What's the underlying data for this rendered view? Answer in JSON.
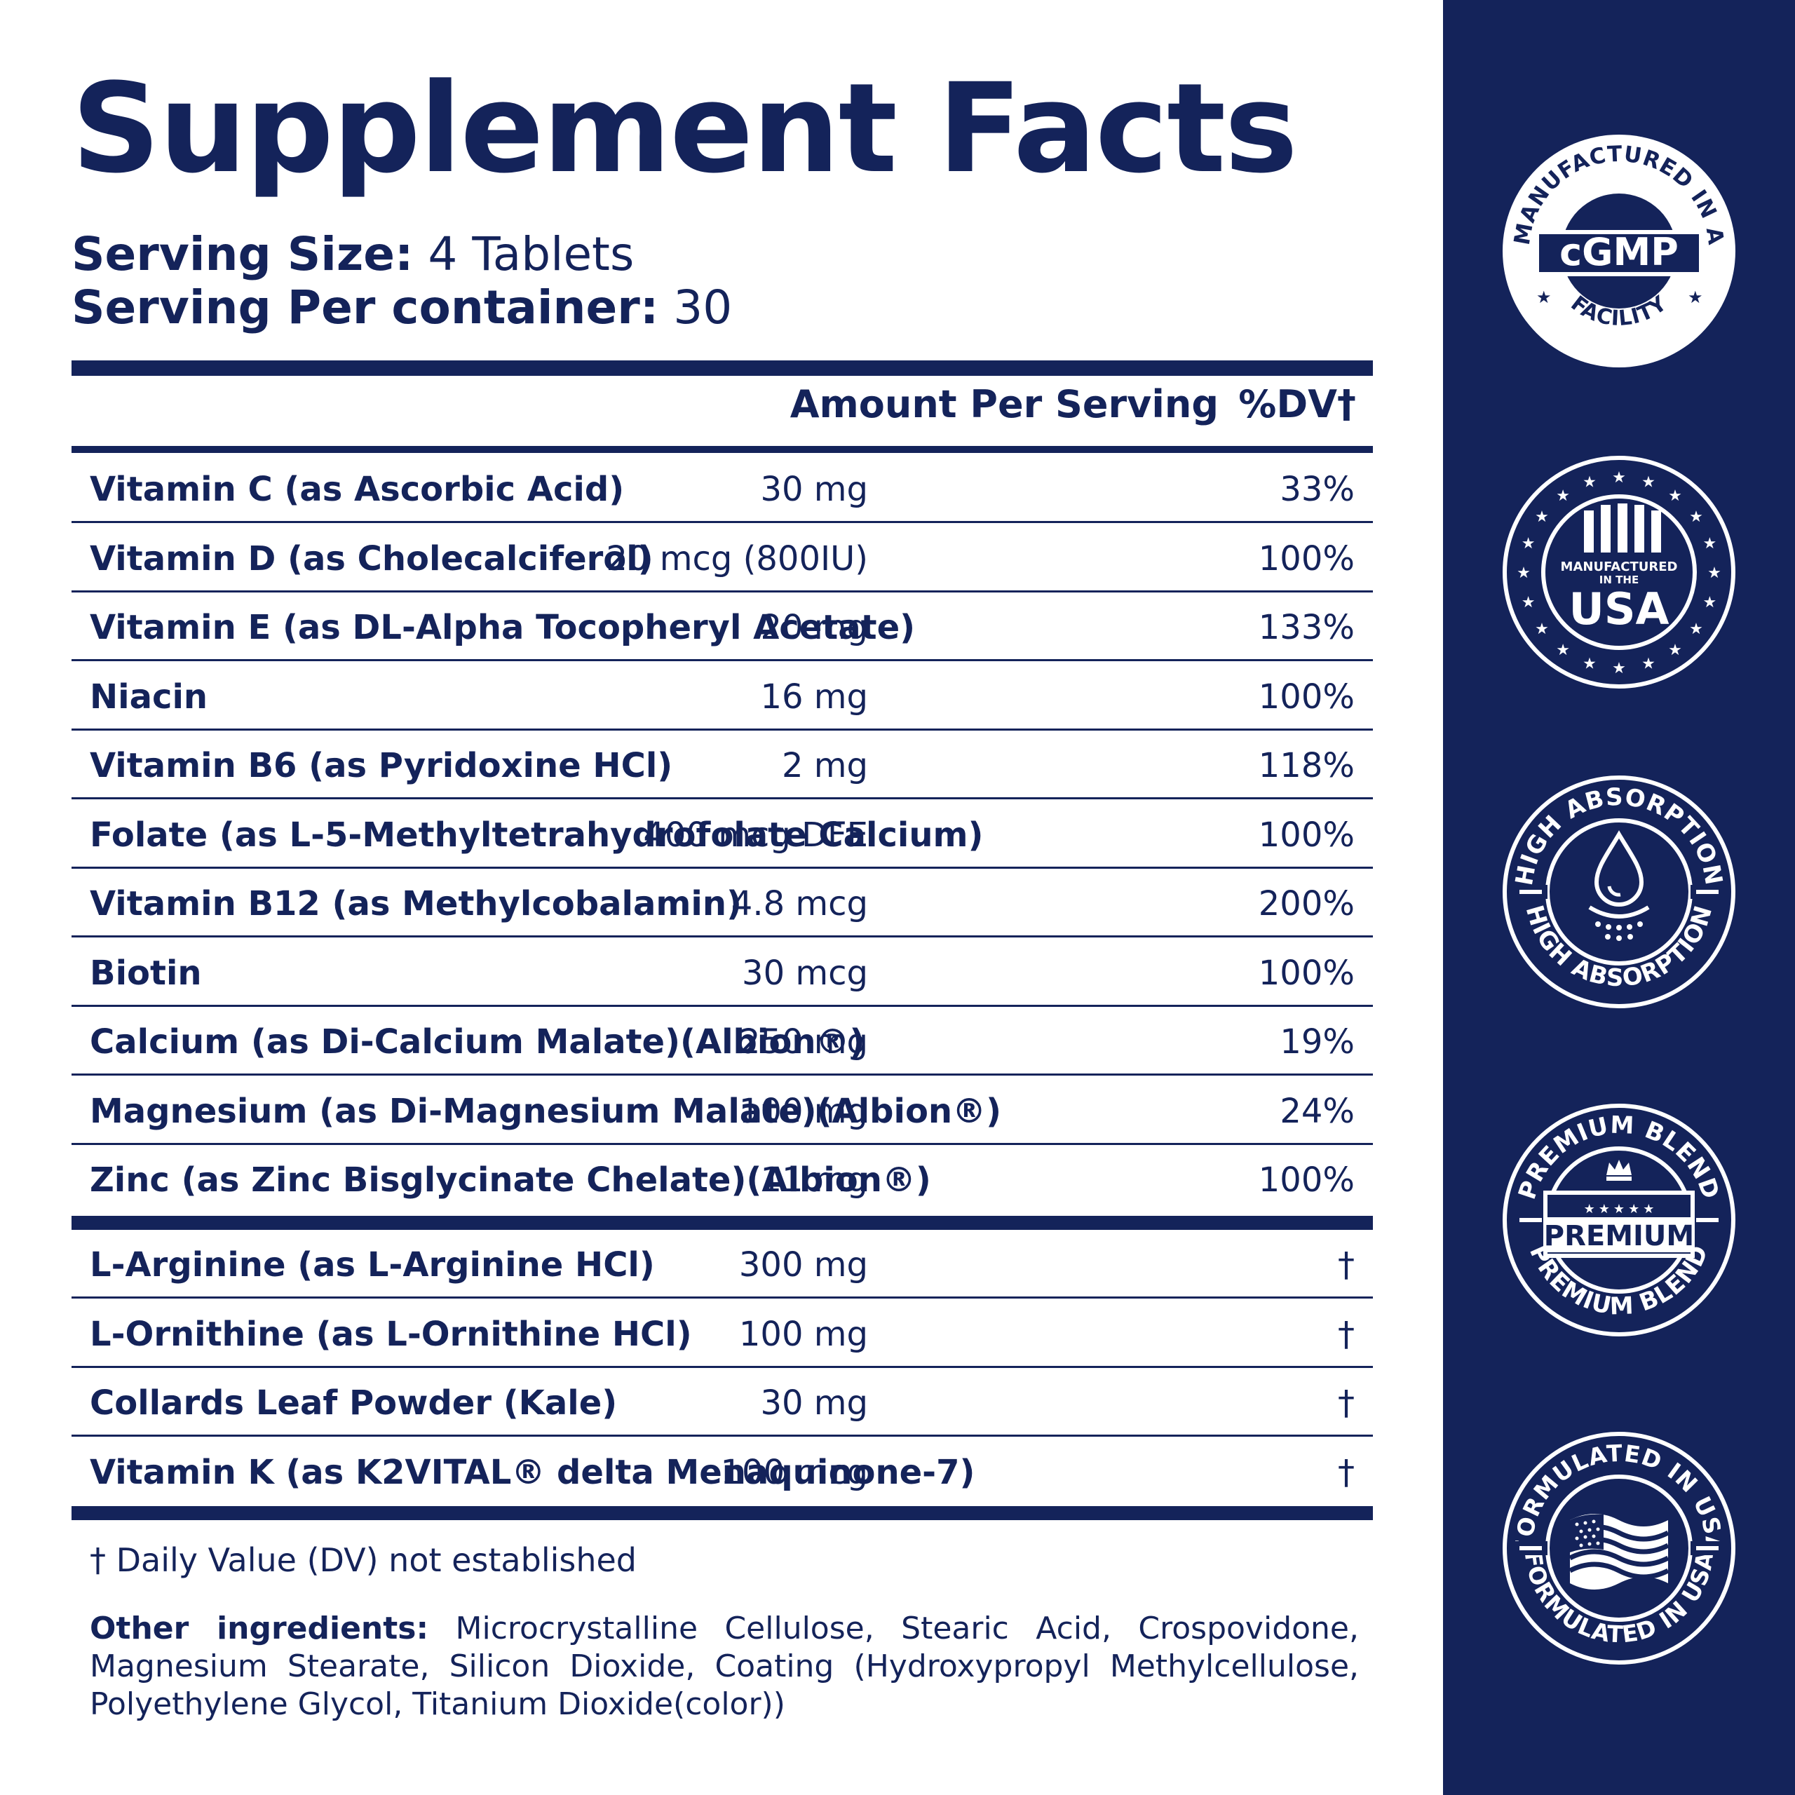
{
  "title": "Supplement Facts",
  "serving": {
    "size_label": "Serving Size:",
    "size_value": " 4 Tablets",
    "per_container_label": "Serving Per container:",
    "per_container_value": " 30"
  },
  "table": {
    "header_amount": "Amount Per Serving",
    "header_dv": "%DV†",
    "rows": [
      {
        "name": "Vitamin C (as Ascorbic Acid)",
        "amount": "30 mg",
        "dv": "33%"
      },
      {
        "name": "Vitamin D (as Cholecalciferol)",
        "amount": "20 mcg (800IU)",
        "dv": "100%"
      },
      {
        "name": "Vitamin E (as DL-Alpha Tocopheryl Acetate)",
        "amount": "20 mg",
        "dv": "133%"
      },
      {
        "name": "Niacin",
        "amount": "16 mg",
        "dv": "100%"
      },
      {
        "name": "Vitamin B6 (as Pyridoxine HCl)",
        "amount": "2 mg",
        "dv": "118%"
      },
      {
        "name": "Folate (as L-5-Methyltetrahydrofolate Calcium)",
        "amount": "400 mcg DFE",
        "dv": "100%"
      },
      {
        "name": "Vitamin B12 (as Methylcobalamin)",
        "amount": "4.8 mcg",
        "dv": "200%"
      },
      {
        "name": "Biotin",
        "amount": "30 mcg",
        "dv": "100%"
      },
      {
        "name": "Calcium (as Di-Calcium Malate)(Albion®)",
        "amount": "250 mg",
        "dv": "19%"
      },
      {
        "name": "Magnesium (as Di-Magnesium Malate)(Albion®)",
        "amount": "100 mg",
        "dv": "24%"
      },
      {
        "name": "Zinc (as Zinc Bisglycinate Chelate)(Albion®)",
        "amount": "11 mg",
        "dv": "100%"
      }
    ],
    "other_rows": [
      {
        "name": "L-Arginine (as L-Arginine HCl)",
        "amount": "300 mg",
        "dv": "†"
      },
      {
        "name": "L-Ornithine (as L-Ornithine HCl)",
        "amount": "100 mg",
        "dv": "†"
      },
      {
        "name": "Collards Leaf Powder (Kale)",
        "amount": "30 mg",
        "dv": "†"
      },
      {
        "name": "Vitamin K (as K2VITAL® delta Menaquinone-7)",
        "amount": "100 mcg",
        "dv": "†"
      }
    ]
  },
  "footnote": "† Daily Value (DV) not established",
  "other_ingredients": {
    "label": "Other ingredients:",
    "text": " Microcrystalline Cellulose, Stearic Acid, Crospovidone, Magnesium Stearate, Silicon Dioxide, Coating (Hydroxypropyl Methylcellulose, Polyethylene Glycol, Titanium Dioxide(color))"
  },
  "badges": {
    "cgmp": {
      "top_text": "MANUFACTURED IN A",
      "center": "cGMP",
      "bottom_text": "FACILITY"
    },
    "usa": {
      "line1": "MANUFACTURED",
      "line2": "IN THE",
      "center": "USA"
    },
    "absorption": {
      "top_text": "HIGH ABSORPTION",
      "bottom_text": "HIGH ABSORPTION",
      "icon": "water-drop-icon"
    },
    "premium": {
      "top_text": "PREMIUM BLEND",
      "center": "PREMIUM",
      "bottom_text": "PREMIUM BLEND",
      "icon": "crown-icon"
    },
    "formulated": {
      "top_text": "FORMULATED IN USA",
      "bottom_text": "FORMULATED IN USA",
      "icon": "us-flag-icon"
    }
  },
  "colors": {
    "navy": "#14235a",
    "white": "#ffffff"
  }
}
